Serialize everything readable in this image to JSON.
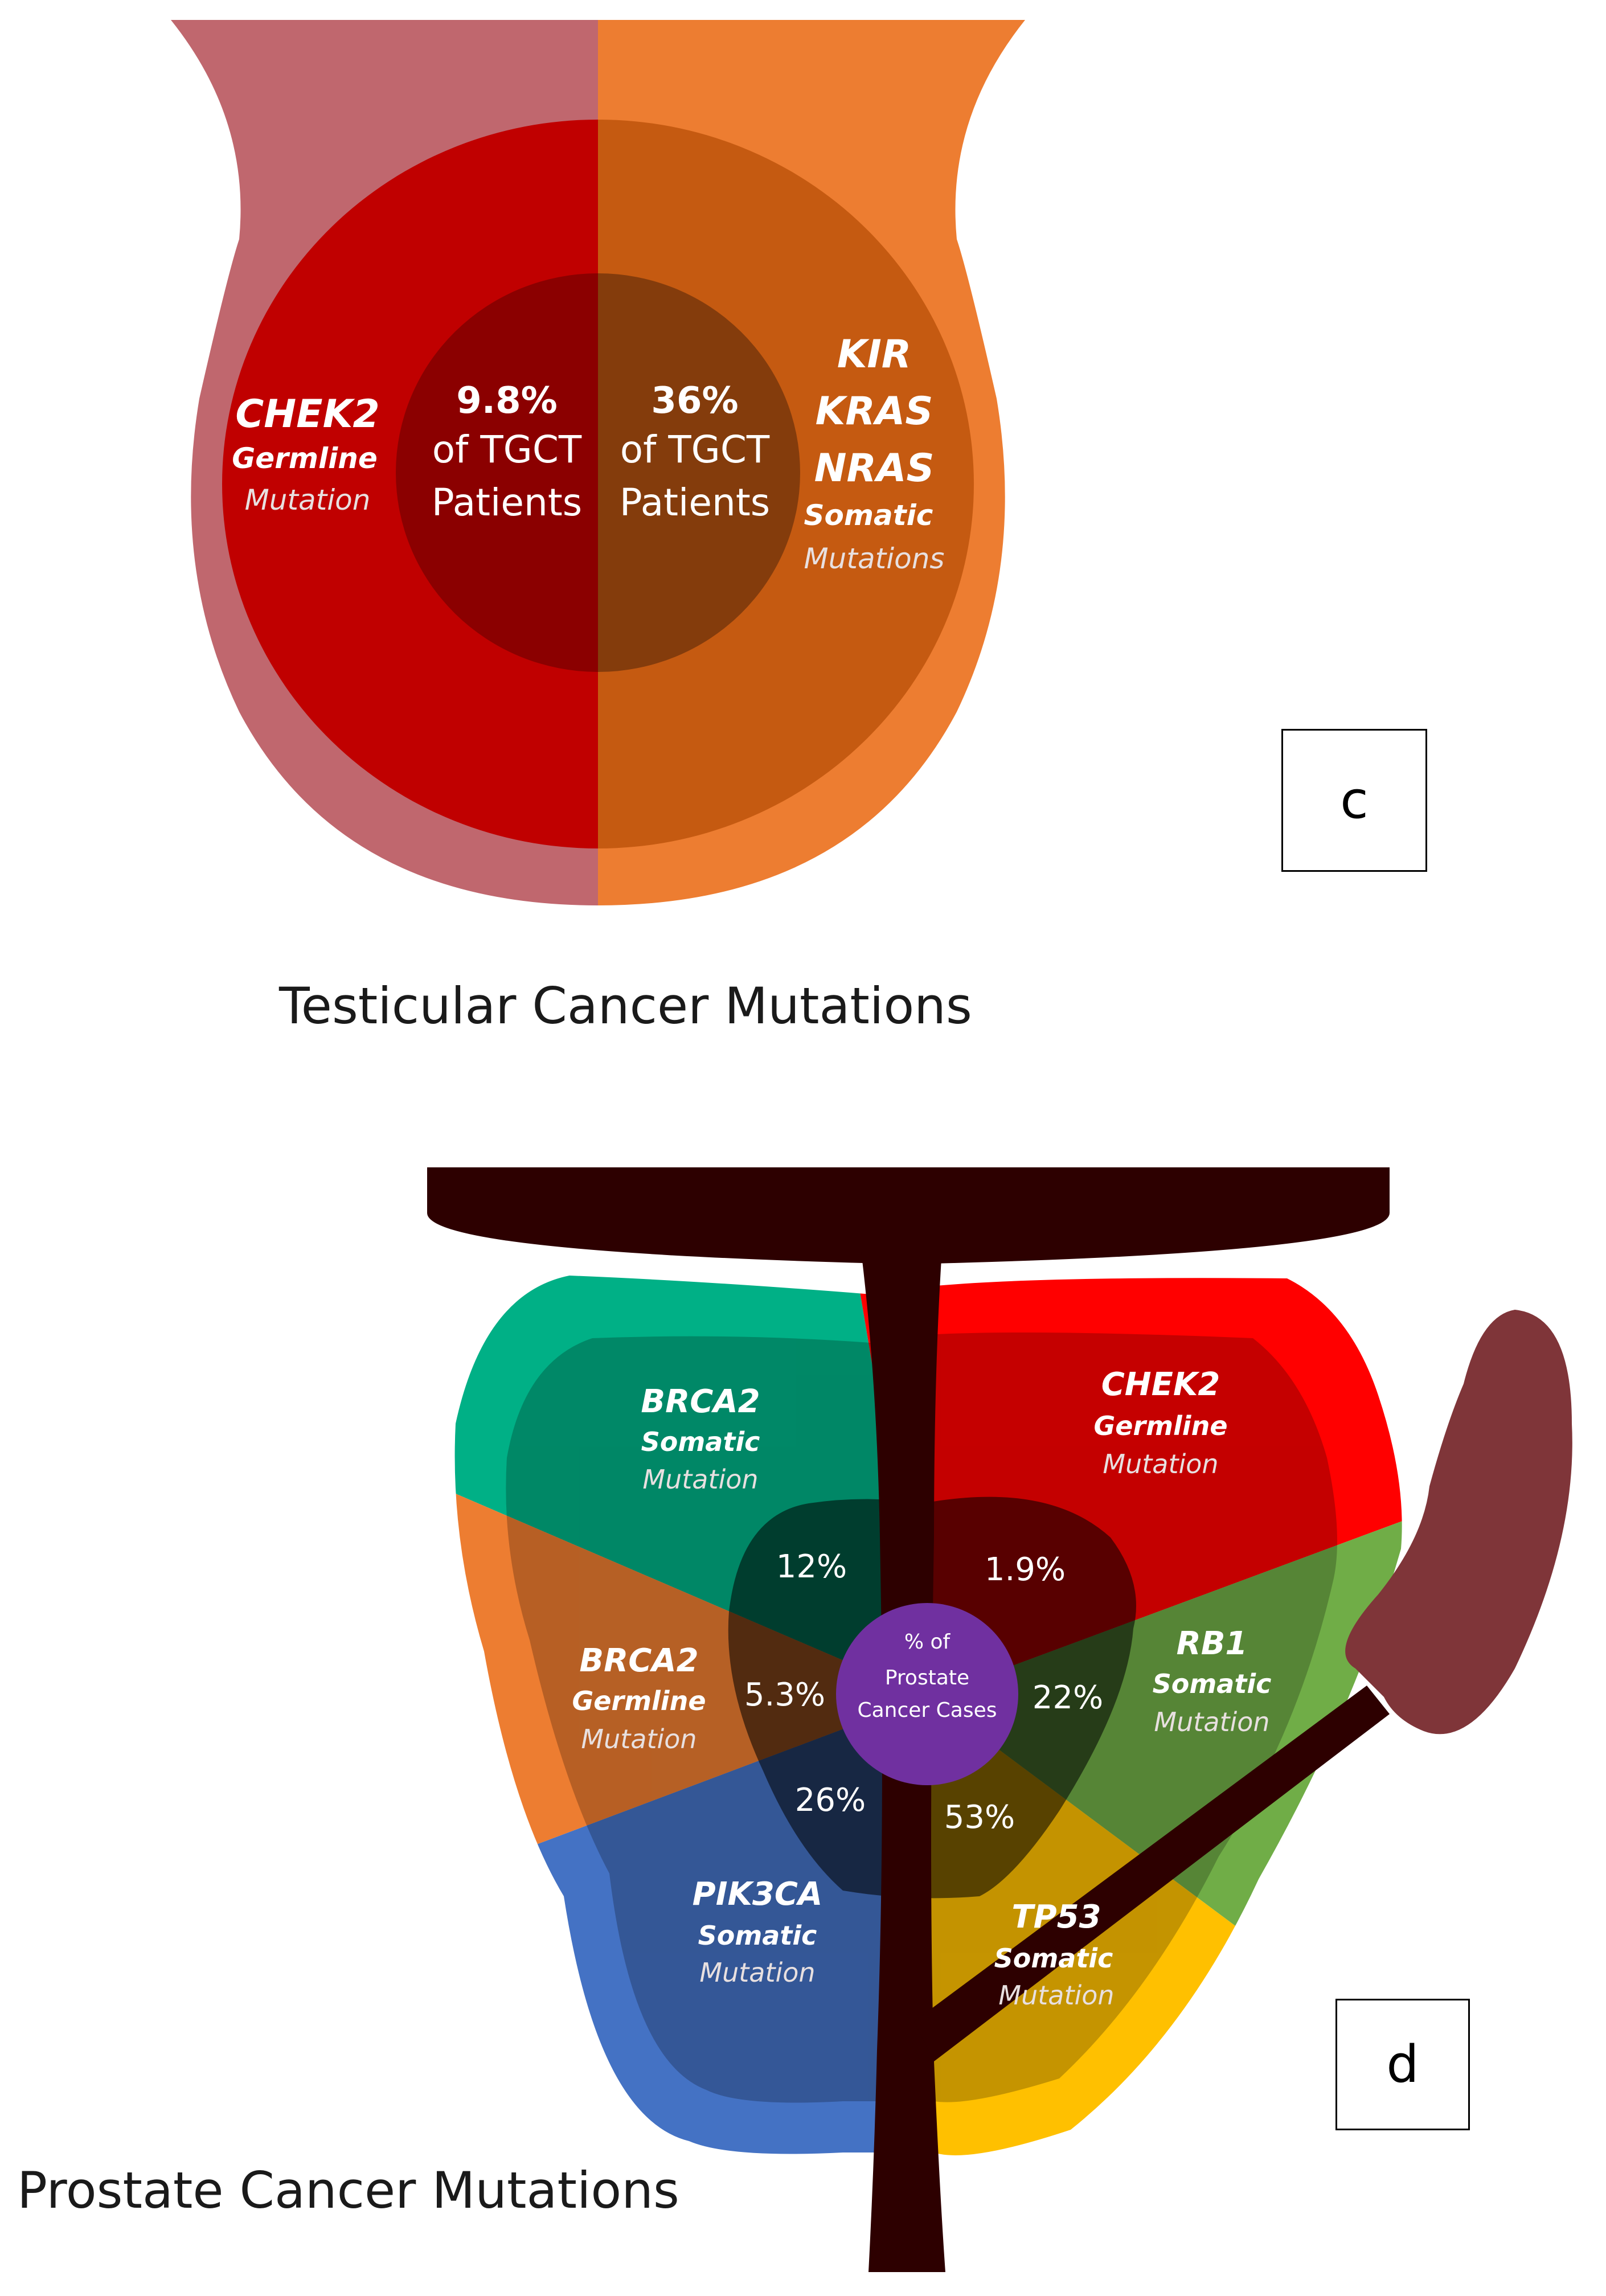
{
  "testicular": {
    "caption": "Testicular Cancer Mutations",
    "panel_label": "c",
    "left": {
      "gene": "CHEK2",
      "type": "Germline",
      "mutation": "Mutation",
      "percent": "9.8%",
      "line1": "of TGCT",
      "line2": "Patients"
    },
    "right": {
      "genes": [
        "KIR",
        "KRAS",
        "NRAS"
      ],
      "type": "Somatic",
      "mutation": "Mutations",
      "percent": "36%",
      "line1": "of TGCT",
      "line2": "Patients"
    },
    "colors": {
      "left_outer": "#c0676e",
      "left_mid": "#c00000",
      "left_inner": "#8b0000",
      "right_outer": "#ed7d31",
      "right_mid": "#c55a11",
      "right_inner": "#843c0c"
    }
  },
  "prostate": {
    "caption": "Prostate Cancer Mutations",
    "panel_label": "d",
    "center_label": [
      "% of",
      "Prostate",
      "Cancer Cases"
    ],
    "segments": [
      {
        "gene": "BRCA2",
        "type": "Somatic",
        "mutation": "Mutation",
        "percent": "12%",
        "color": "#00b086"
      },
      {
        "gene": "CHEK2",
        "type": "Germline",
        "mutation": "Mutation",
        "percent": "1.9%",
        "color": "#ff0000"
      },
      {
        "gene": "RB1",
        "type": "Somatic",
        "mutation": "Mutation",
        "percent": "22%",
        "color": "#70ad47"
      },
      {
        "gene": "TP53",
        "type": "Somatic",
        "mutation": "Mutation",
        "percent": "53%",
        "color": "#ffc000"
      },
      {
        "gene": "PIK3CA",
        "type": "Somatic",
        "mutation": "Mutation",
        "percent": "26%",
        "color": "#4472c4"
      },
      {
        "gene": "BRCA2",
        "type": "Germline",
        "mutation": "Mutation",
        "percent": "5.3%",
        "color": "#ed7d31"
      }
    ],
    "colors": {
      "urethra": "#2d0000",
      "vesicle": "#7f3539",
      "center": "#7030a0"
    }
  }
}
